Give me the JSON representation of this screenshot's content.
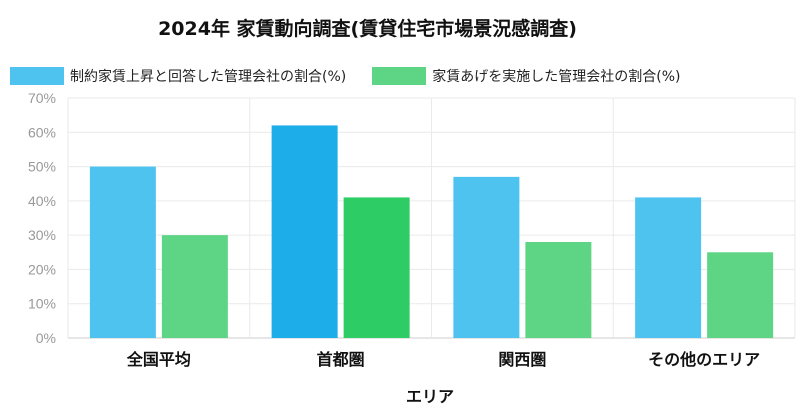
{
  "chart_data": {
    "type": "bar",
    "title": "2024年 家賃動向調査(賃貸住宅市場景況感調査)",
    "xlabel": "エリア",
    "ylabel": "",
    "categories": [
      "全国平均",
      "首都圏",
      "関西圏",
      "その他のエリア"
    ],
    "series": [
      {
        "name": "制約家賃上昇と回答した管理会社の割合(%)",
        "values": [
          50,
          62,
          47,
          41
        ],
        "color": "#4fc3f0",
        "highlight_color": "#1daeea"
      },
      {
        "name": "家賃あげを実施した管理会社の割合(%)",
        "values": [
          30,
          41,
          28,
          25
        ],
        "color": "#5dd584",
        "highlight_color": "#2ecc64"
      }
    ],
    "highlighted_category": "首都圏",
    "ylim": [
      0,
      70
    ],
    "yticks": [
      "0%",
      "10%",
      "20%",
      "30%",
      "40%",
      "50%",
      "60%",
      "70%"
    ],
    "grid": true,
    "legend": "top"
  }
}
